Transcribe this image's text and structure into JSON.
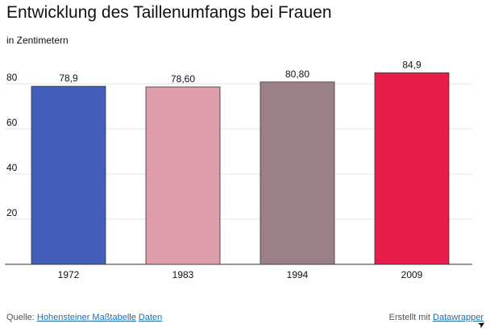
{
  "header": {
    "title": "Entwicklung des Taillenumfangs bei Frauen",
    "subtitle": "in Zentimetern"
  },
  "chart_data": {
    "type": "bar",
    "categories": [
      "1972",
      "1983",
      "1994",
      "2009"
    ],
    "values": [
      78.9,
      78.6,
      80.8,
      84.9
    ],
    "value_labels": [
      "78,9",
      "78,60",
      "80,80",
      "84,9"
    ],
    "colors": [
      "#425fbd",
      "#de9dab",
      "#9b8185",
      "#e71c49"
    ],
    "title": "Entwicklung des Taillenumfangs bei Frauen",
    "subtitle": "in Zentimetern",
    "xlabel": "",
    "ylabel": "",
    "yticks": [
      20,
      40,
      60,
      80
    ],
    "ylim": [
      0,
      87
    ],
    "grid": true
  },
  "footer": {
    "source_prefix": "Quelle:",
    "source_link1": "Hohensteiner Maßtabelle",
    "source_link2": "Daten",
    "credit_prefix": "Erstellt mit",
    "credit_link": "Datawrapper"
  }
}
